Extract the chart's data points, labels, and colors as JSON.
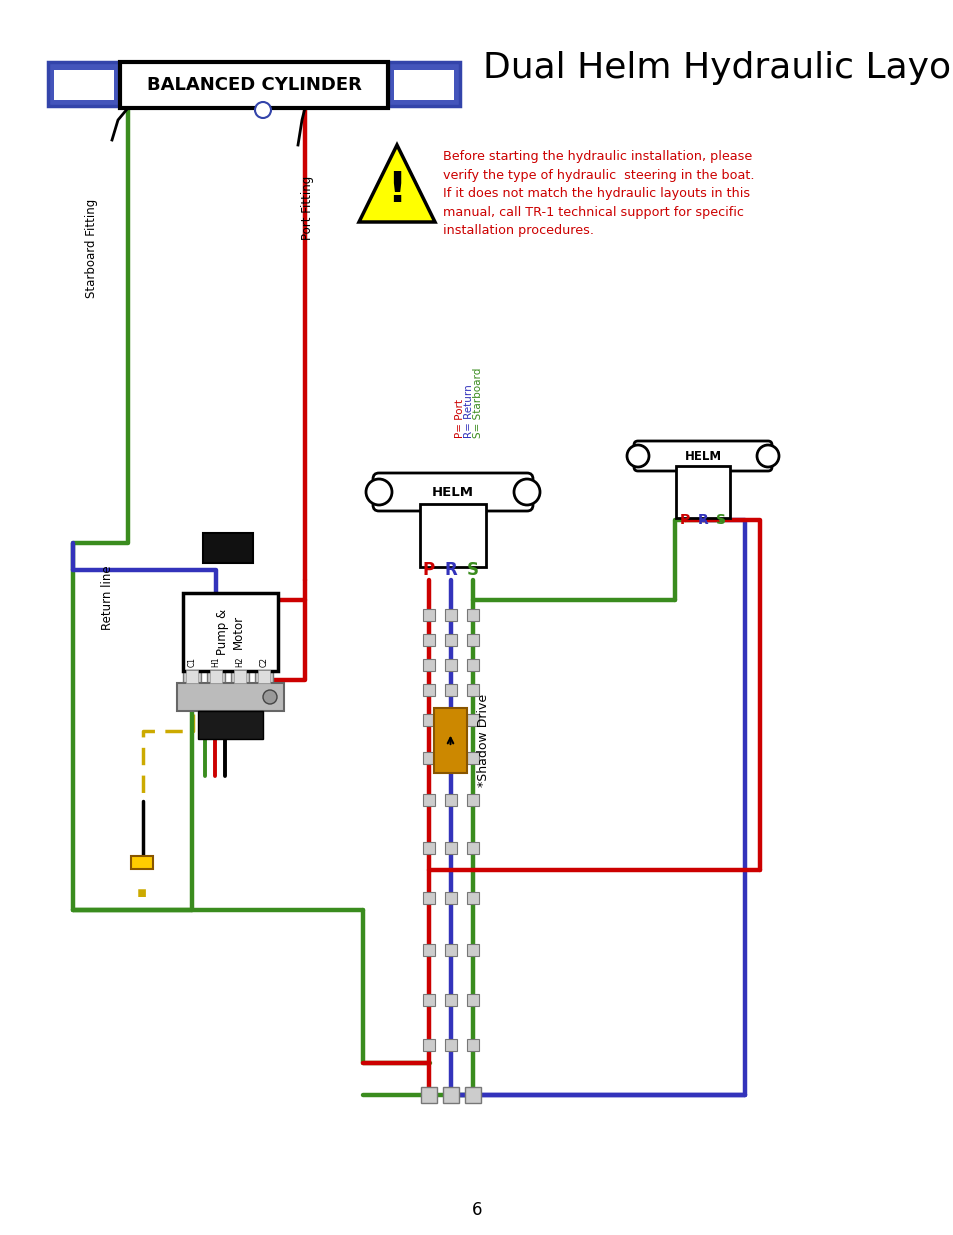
{
  "title": "Dual Helm Hydraulic Layout",
  "bg_color": "#ffffff",
  "red": "#cc0000",
  "green": "#3a8c1e",
  "blue": "#3333bb",
  "dark_blue": "#3333aa",
  "purple": "#5533cc",
  "black": "#000000",
  "gold": "#ccaa00",
  "cylinder_label": "BALANCED CYLINDER",
  "pump_label": "Pump &\nMotor",
  "helm_label": "HELM",
  "shadow_drive_label": "*Shadow Drive",
  "return_line_label": "Return line",
  "port_fitting_label": "Port Fitting",
  "starboard_fitting_label": "Starboard Fitting",
  "legend_p": "P= Port",
  "legend_r": "R= Return",
  "legend_s": "S= Starboard",
  "warning_text": "Before starting the hydraulic installation, please\nverify the type of hydraulic  steering in the boat.\nIf it does not match the hydraulic layouts in this\nmanual, call TR-1 technical support for specific\ninstallation procedures.",
  "page_number": "6",
  "lw_main": 3.2
}
